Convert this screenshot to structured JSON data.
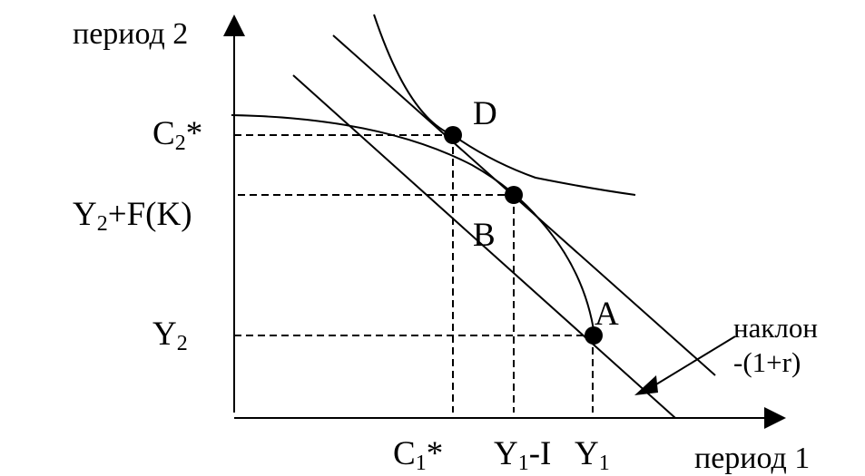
{
  "axes": {
    "y_label": "период 2",
    "x_label": "период 1"
  },
  "y_ticks": {
    "c2": {
      "main": "C",
      "sub": "2",
      "suffix": "*"
    },
    "y2f": {
      "main": "Y",
      "sub": "2",
      "suffix": "+F(K)"
    },
    "y2": {
      "main": "Y",
      "sub": "2",
      "suffix": ""
    }
  },
  "x_ticks": {
    "c1": {
      "main": "C",
      "sub": "1",
      "suffix": "*"
    },
    "y1i": {
      "main": "Y",
      "sub": "1",
      "suffix": "-I"
    },
    "y1": {
      "main": "Y",
      "sub": "1",
      "suffix": ""
    }
  },
  "points": {
    "d": "D",
    "b": "B",
    "a": "A"
  },
  "annotation": {
    "line1": "наклон",
    "line2": "-(1+r)"
  }
}
